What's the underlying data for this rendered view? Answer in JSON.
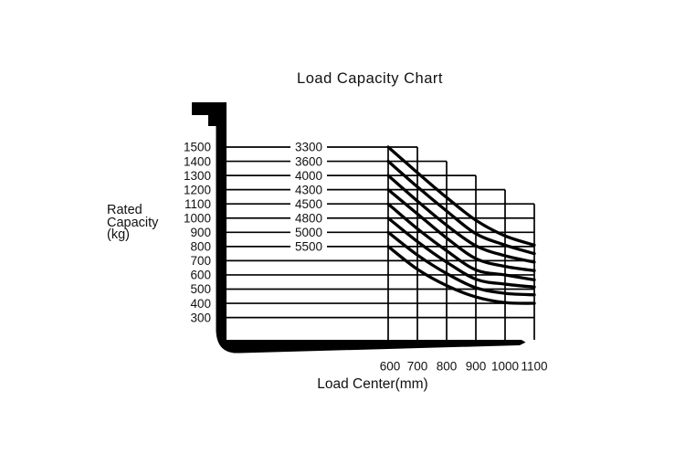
{
  "title": "Load Capacity Chart",
  "y_axis_label": [
    "Rated",
    "Capacity",
    "(kg)"
  ],
  "x_axis_label": "Load Center(mm)",
  "chart_data": {
    "type": "line",
    "title": "Load Capacity Chart",
    "xlabel": "Load Center(mm)",
    "ylabel": "Rated Capacity (kg)",
    "x": [
      600,
      700,
      800,
      900,
      1000,
      1100
    ],
    "x_tick_labels": [
      "600",
      "700",
      "800",
      "900",
      "1000",
      "1100"
    ],
    "y_ticks": [
      1500,
      1400,
      1300,
      1200,
      1100,
      1000,
      900,
      800,
      700,
      600,
      500,
      400,
      300
    ],
    "xlim": [
      600,
      1100
    ],
    "ylim": [
      300,
      1500
    ],
    "grid": true,
    "legend_position": "inline-left",
    "line_color": "#000000",
    "background": "#ffffff",
    "series": [
      {
        "name": "3300",
        "values": [
          1500,
          1320,
          1145,
          985,
          875,
          810
        ]
      },
      {
        "name": "3600",
        "values": [
          1400,
          1220,
          1050,
          890,
          810,
          750
        ]
      },
      {
        "name": "4000",
        "values": [
          1300,
          1120,
          950,
          805,
          735,
          690
        ]
      },
      {
        "name": "4300",
        "values": [
          1200,
          1030,
          860,
          715,
          660,
          630
        ]
      },
      {
        "name": "4500",
        "values": [
          1100,
          925,
          770,
          635,
          600,
          565
        ]
      },
      {
        "name": "4800",
        "values": [
          1000,
          835,
          690,
          570,
          535,
          515
        ]
      },
      {
        "name": "5000",
        "values": [
          900,
          740,
          610,
          510,
          470,
          460
        ]
      },
      {
        "name": "5500",
        "values": [
          800,
          640,
          525,
          445,
          405,
          400
        ]
      }
    ]
  }
}
